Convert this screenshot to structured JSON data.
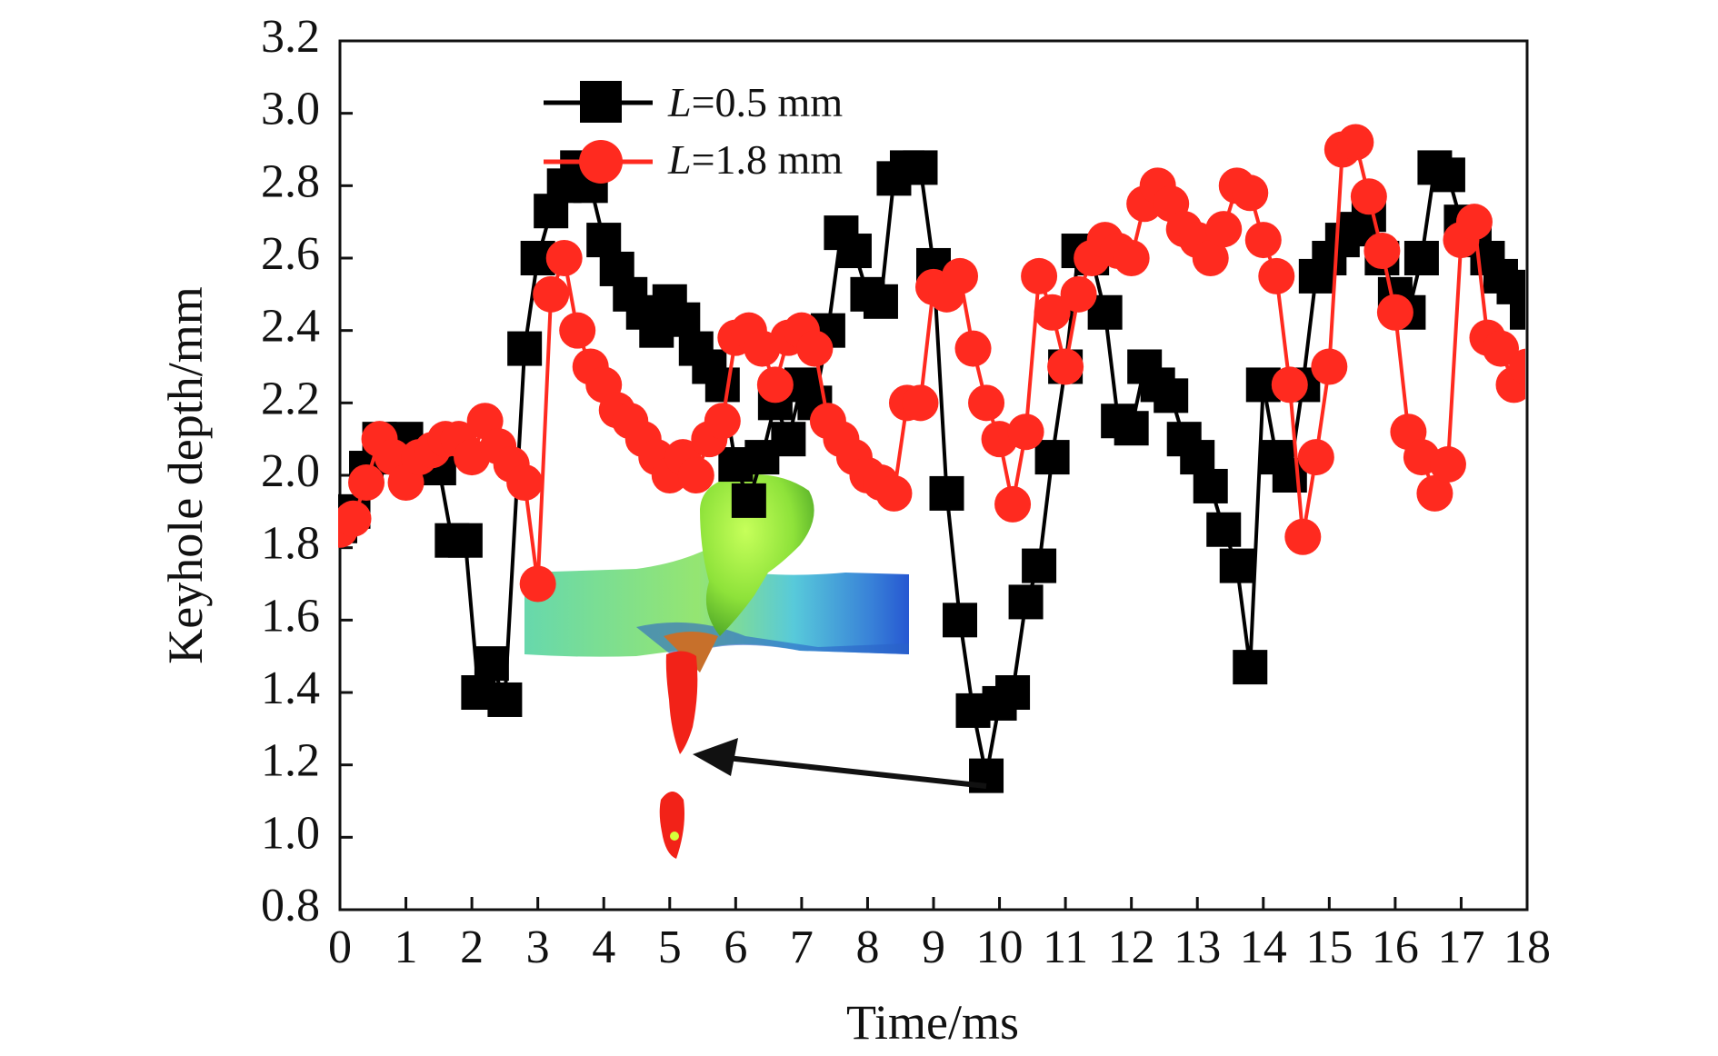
{
  "chart_data": {
    "type": "line",
    "xlabel": "Time/ms",
    "ylabel": "Keyhole depth/mm",
    "xlim": [
      0,
      18
    ],
    "ylim": [
      0.8,
      3.2
    ],
    "xticks": [
      "0",
      "1",
      "2",
      "3",
      "4",
      "5",
      "6",
      "7",
      "8",
      "9",
      "10",
      "11",
      "12",
      "13",
      "14",
      "15",
      "16",
      "17",
      "18"
    ],
    "yticks": [
      "0.8",
      "1.0",
      "1.2",
      "1.4",
      "1.6",
      "1.8",
      "2.0",
      "2.2",
      "2.4",
      "2.6",
      "2.8",
      "3.0",
      "3.2"
    ],
    "grid": false,
    "legend_position": "top-center",
    "inset": "keyhole-shape-illustration",
    "series": [
      {
        "name": "L=0.5 mm",
        "name_italic": "L",
        "name_rest": "=0.5 mm",
        "color": "#000000",
        "marker": "square",
        "x": [
          0.0,
          0.2,
          0.4,
          0.6,
          0.8,
          1.0,
          1.2,
          1.5,
          1.7,
          1.9,
          2.1,
          2.3,
          2.5,
          2.8,
          3.0,
          3.2,
          3.4,
          3.6,
          3.8,
          4.0,
          4.2,
          4.4,
          4.6,
          4.8,
          5.0,
          5.2,
          5.4,
          5.6,
          5.8,
          6.0,
          6.2,
          6.4,
          6.6,
          6.8,
          7.0,
          7.2,
          7.4,
          7.6,
          7.8,
          8.0,
          8.2,
          8.4,
          8.6,
          8.8,
          9.0,
          9.2,
          9.4,
          9.6,
          9.8,
          10.0,
          10.2,
          10.4,
          10.6,
          10.8,
          11.0,
          11.2,
          11.4,
          11.6,
          11.8,
          12.0,
          12.2,
          12.4,
          12.6,
          12.8,
          13.0,
          13.2,
          13.4,
          13.6,
          13.8,
          14.0,
          14.2,
          14.4,
          14.6,
          14.8,
          15.0,
          15.2,
          15.4,
          15.6,
          15.8,
          16.0,
          16.2,
          16.4,
          16.6,
          16.8,
          17.0,
          17.2,
          17.4,
          17.6,
          17.8,
          18.0
        ],
        "y": [
          1.86,
          1.9,
          2.02,
          2.1,
          2.05,
          2.1,
          2.03,
          2.02,
          1.82,
          1.82,
          1.4,
          1.48,
          1.38,
          2.35,
          2.6,
          2.73,
          2.8,
          2.85,
          2.8,
          2.65,
          2.57,
          2.5,
          2.45,
          2.4,
          2.48,
          2.43,
          2.35,
          2.3,
          2.25,
          2.03,
          1.93,
          2.05,
          2.2,
          2.1,
          2.25,
          2.2,
          2.4,
          2.67,
          2.62,
          2.5,
          2.48,
          2.82,
          2.85,
          2.85,
          2.58,
          1.95,
          1.6,
          1.35,
          1.17,
          1.37,
          1.4,
          1.65,
          1.75,
          2.05,
          2.3,
          2.62,
          2.6,
          2.45,
          2.15,
          2.13,
          2.3,
          2.25,
          2.22,
          2.1,
          2.05,
          1.97,
          1.85,
          1.75,
          1.47,
          2.25,
          2.05,
          2.0,
          2.25,
          2.55,
          2.6,
          2.65,
          2.68,
          2.72,
          2.6,
          2.5,
          2.45,
          2.6,
          2.85,
          2.83,
          2.7,
          2.65,
          2.6,
          2.55,
          2.52,
          2.45
        ]
      },
      {
        "name": "L=1.8 mm",
        "name_italic": "L",
        "name_rest": "=1.8 mm",
        "color": "#ff2a1f",
        "marker": "circle",
        "x": [
          0.0,
          0.2,
          0.4,
          0.6,
          0.8,
          1.0,
          1.2,
          1.4,
          1.6,
          1.8,
          2.0,
          2.2,
          2.4,
          2.6,
          2.8,
          3.0,
          3.2,
          3.4,
          3.6,
          3.8,
          4.0,
          4.2,
          4.4,
          4.6,
          4.8,
          5.0,
          5.2,
          5.4,
          5.6,
          5.8,
          6.0,
          6.2,
          6.4,
          6.6,
          6.8,
          7.0,
          7.2,
          7.4,
          7.6,
          7.8,
          8.0,
          8.2,
          8.4,
          8.6,
          8.8,
          9.0,
          9.2,
          9.4,
          9.6,
          9.8,
          10.0,
          10.2,
          10.4,
          10.6,
          10.8,
          11.0,
          11.2,
          11.4,
          11.6,
          11.8,
          12.0,
          12.2,
          12.4,
          12.6,
          12.8,
          13.0,
          13.2,
          13.4,
          13.6,
          13.8,
          14.0,
          14.2,
          14.4,
          14.6,
          14.8,
          15.0,
          15.2,
          15.4,
          15.6,
          15.8,
          16.0,
          16.2,
          16.4,
          16.6,
          16.8,
          17.0,
          17.2,
          17.4,
          17.6,
          17.8,
          18.0
        ],
        "y": [
          1.85,
          1.88,
          1.98,
          2.1,
          2.05,
          1.98,
          2.05,
          2.07,
          2.1,
          2.1,
          2.05,
          2.15,
          2.08,
          2.03,
          1.98,
          1.7,
          2.5,
          2.6,
          2.4,
          2.3,
          2.25,
          2.18,
          2.15,
          2.1,
          2.05,
          2.0,
          2.05,
          2.0,
          2.1,
          2.15,
          2.38,
          2.4,
          2.35,
          2.25,
          2.38,
          2.4,
          2.35,
          2.15,
          2.1,
          2.05,
          2.0,
          1.98,
          1.95,
          2.2,
          2.2,
          2.52,
          2.5,
          2.55,
          2.35,
          2.2,
          2.1,
          1.92,
          2.12,
          2.55,
          2.45,
          2.3,
          2.5,
          2.6,
          2.65,
          2.62,
          2.6,
          2.75,
          2.8,
          2.75,
          2.68,
          2.65,
          2.6,
          2.68,
          2.8,
          2.78,
          2.65,
          2.55,
          2.25,
          1.83,
          2.05,
          2.3,
          2.9,
          2.92,
          2.77,
          2.62,
          2.45,
          2.12,
          2.05,
          1.95,
          2.03,
          2.65,
          2.7,
          2.38,
          2.35,
          2.25,
          2.3
        ]
      }
    ]
  }
}
